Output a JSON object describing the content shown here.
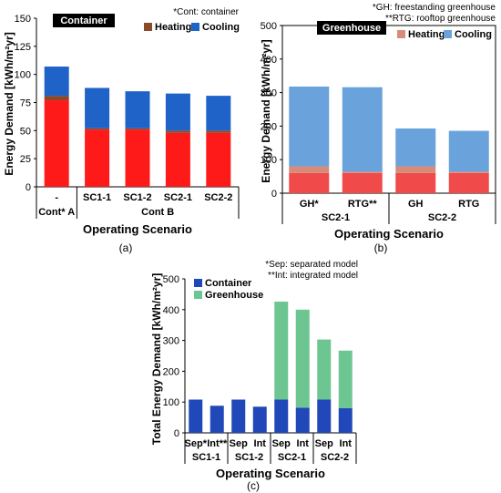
{
  "colors": {
    "container_cooling": "#1f63c9",
    "container_heating": "#8b4a2b",
    "container_base": "#ff1a1a",
    "container_base_alt": "#e03080",
    "greenhouse_cooling": "#6aa3dc",
    "greenhouse_heating": "#d98b7a",
    "greenhouse_base": "#f04a4a",
    "integrated_container": "#2148b8",
    "integrated_greenhouse": "#6dc691",
    "title_box": "#000000"
  },
  "chart_data": [
    {
      "id": "a",
      "type": "bar",
      "stacked": true,
      "caption": "(a)",
      "note": "*Cont: container",
      "box_title": "Container",
      "legend": [
        "Heating",
        "Cooling"
      ],
      "xlabel": "Operating Scenario",
      "ylabel": "Energy Demand [kWh/m²yr]",
      "ylim": [
        0,
        150
      ],
      "yticks": [
        0,
        25,
        50,
        75,
        100,
        125,
        150
      ],
      "categories": [
        "-",
        "SC1-1",
        "SC1-2",
        "SC2-1",
        "SC2-2"
      ],
      "groups": [
        {
          "label": "Cont* A",
          "from": 0,
          "to": 0
        },
        {
          "label": "Cont B",
          "from": 1,
          "to": 4
        }
      ],
      "series": [
        {
          "name": "",
          "color_key": "container_base",
          "values": [
            77,
            51,
            51,
            48,
            48
          ]
        },
        {
          "name": "Heating",
          "color_key": "container_heating",
          "values": [
            4,
            1,
            1,
            2,
            2
          ]
        },
        {
          "name": "Cooling",
          "color_key": "container_cooling",
          "values": [
            26,
            36,
            33,
            33,
            31
          ]
        }
      ]
    },
    {
      "id": "b",
      "type": "bar",
      "stacked": true,
      "caption": "(b)",
      "note": [
        "*GH: freestanding greenhouse",
        "**RTG: rooftop greenhouse"
      ],
      "box_title": "Greenhouse",
      "legend": [
        "Heating",
        "Cooling"
      ],
      "xlabel": "Operating Scenario",
      "ylabel": "Energy Demand [kWh/m²yr]",
      "ylim": [
        0,
        500
      ],
      "yticks": [
        0,
        100,
        200,
        300,
        400,
        500
      ],
      "categories": [
        "GH*",
        "RTG**",
        "GH",
        "RTG"
      ],
      "groups": [
        {
          "label": "SC2-1",
          "from": 0,
          "to": 1
        },
        {
          "label": "SC2-2",
          "from": 2,
          "to": 3
        }
      ],
      "series": [
        {
          "name": "",
          "color_key": "greenhouse_base",
          "values": [
            60,
            60,
            60,
            60
          ]
        },
        {
          "name": "Heating",
          "color_key": "greenhouse_heating",
          "values": [
            20,
            4,
            20,
            4
          ]
        },
        {
          "name": "Cooling",
          "color_key": "greenhouse_cooling",
          "values": [
            238,
            252,
            113,
            122
          ]
        }
      ]
    },
    {
      "id": "c",
      "type": "bar",
      "stacked": true,
      "caption": "(c)",
      "note": [
        "*Sep: separated model",
        "**Int: integrated model"
      ],
      "legend": [
        "Container",
        "Greenhouse"
      ],
      "xlabel": "Operating Scenario",
      "ylabel": "Total Energy Demand [kWh/m²yr]",
      "ylim": [
        0,
        500
      ],
      "yticks": [
        0,
        100,
        200,
        300,
        400,
        500
      ],
      "categories": [
        "Sep*",
        "Int**",
        "Sep",
        "Int",
        "Sep",
        "Int",
        "Sep",
        "Int"
      ],
      "groups": [
        {
          "label": "SC1-1",
          "from": 0,
          "to": 1
        },
        {
          "label": "SC1-2",
          "from": 2,
          "to": 3
        },
        {
          "label": "SC2-1",
          "from": 4,
          "to": 5
        },
        {
          "label": "SC2-2",
          "from": 6,
          "to": 7
        }
      ],
      "series": [
        {
          "name": "Container",
          "color_key": "integrated_container",
          "values": [
            108,
            88,
            108,
            85,
            108,
            82,
            108,
            80
          ]
        },
        {
          "name": "Greenhouse",
          "color_key": "integrated_greenhouse",
          "values": [
            0,
            0,
            0,
            0,
            318,
            318,
            195,
            187
          ]
        }
      ]
    }
  ]
}
